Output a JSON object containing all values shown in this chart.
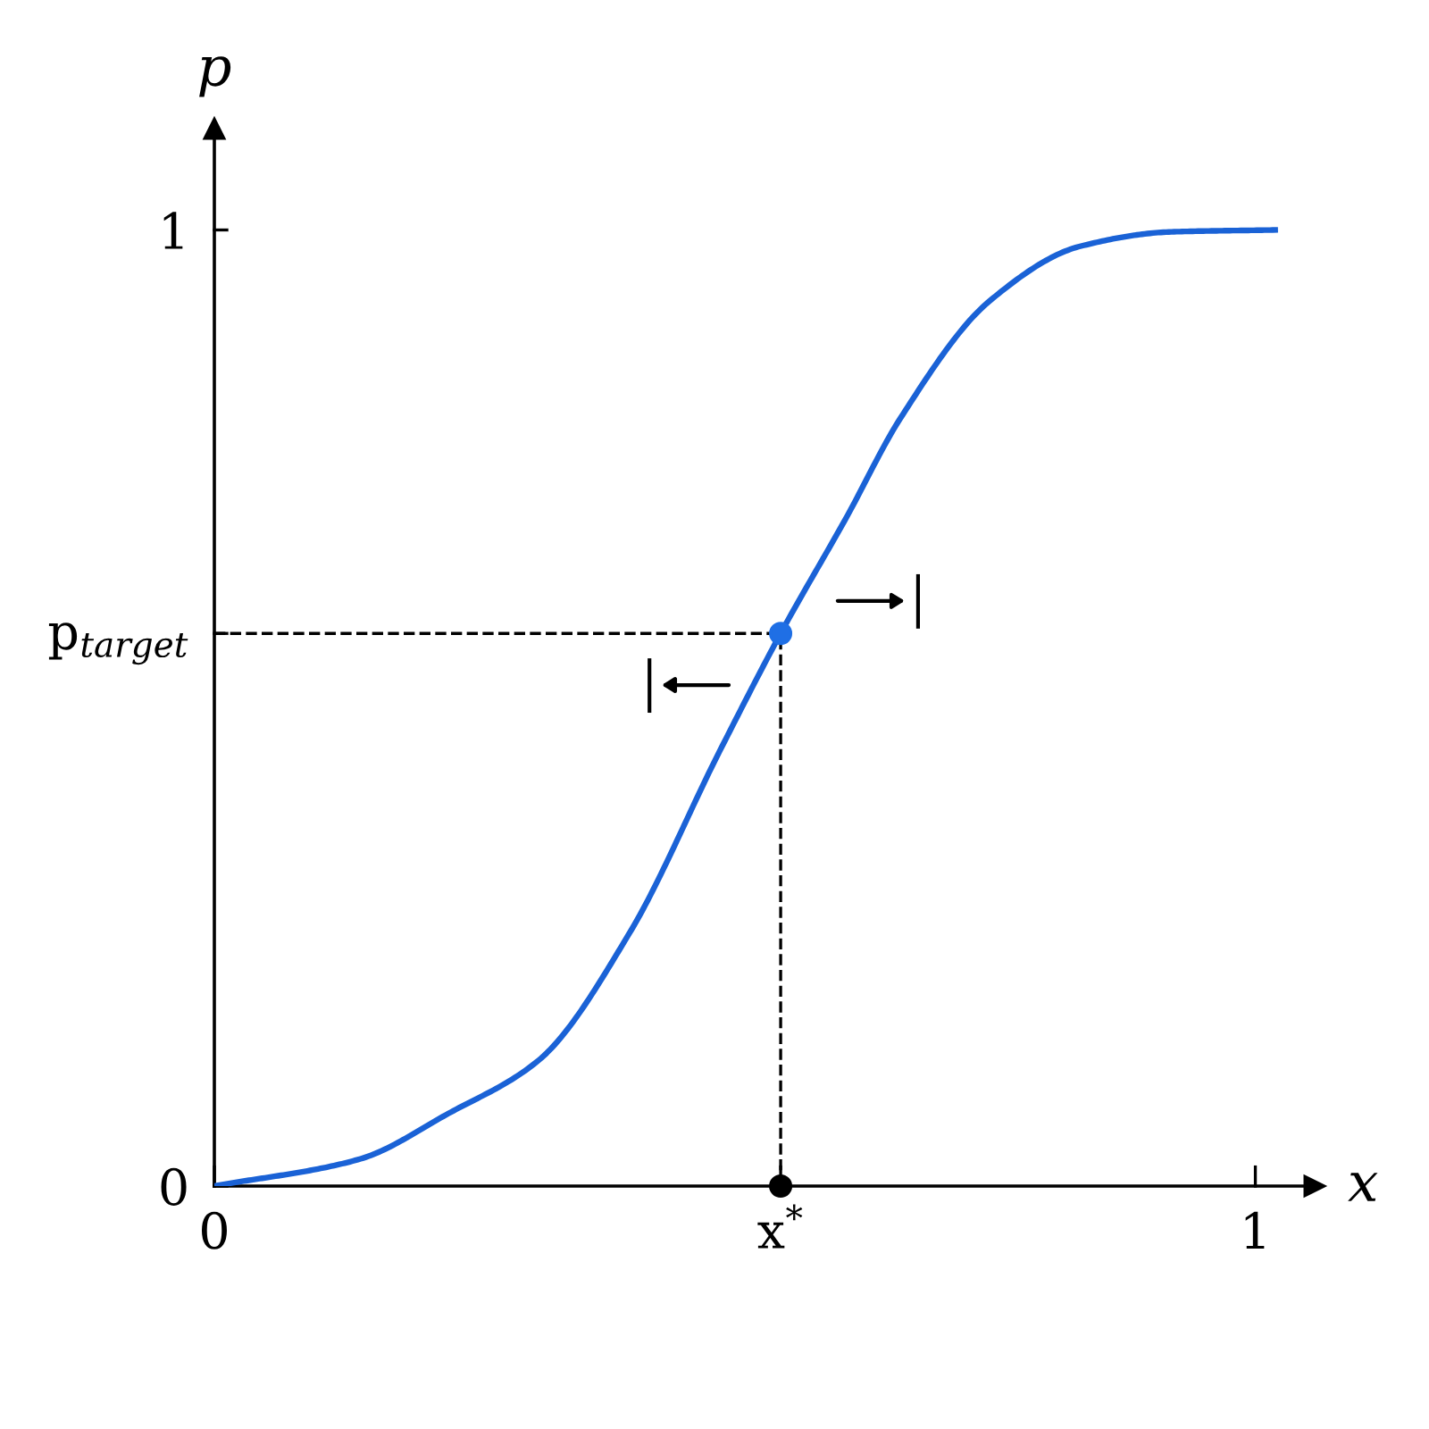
{
  "chart_data": {
    "type": "line",
    "xlabel": "x",
    "ylabel": "p",
    "xlim": [
      0,
      1.057
    ],
    "ylim": [
      0,
      1.106
    ],
    "xticks": [
      0,
      {
        "value": 0.544,
        "label": "x$^{*}$"
      },
      1
    ],
    "yticks": [
      0,
      {
        "value": 0.578,
        "label": "p$_{target}$"
      },
      1
    ],
    "grid": false,
    "line_style": "solid",
    "series": [
      {
        "marker": "none",
        "color": "#1a62d6",
        "x": [
          0,
          0.139,
          0.225,
          0.312,
          0.399,
          0.485,
          0.544,
          0.607,
          0.659,
          0.745,
          0.832,
          0.919,
          1.019
        ],
        "values": [
          0,
          0.028,
          0.076,
          0.132,
          0.265,
          0.454,
          0.578,
          0.699,
          0.803,
          0.926,
          0.983,
          0.998,
          1.0
        ]
      },
      {
        "type": "scatter",
        "marker": "circle",
        "color": "#1f6fe5",
        "x": [
          0.544
        ],
        "values": [
          0.578
        ]
      },
      {
        "type": "scatter",
        "marker": "circle",
        "color": "#000000",
        "x": [
          0.544
        ],
        "values": [
          0
        ]
      }
    ],
    "ref_lines": [
      {
        "axis": "y",
        "value": 0.578,
        "color": "#000000",
        "line_style": "dashed"
      },
      {
        "axis": "x",
        "value": 0.544,
        "color": "#000000",
        "line_style": "dashed"
      }
    ]
  }
}
